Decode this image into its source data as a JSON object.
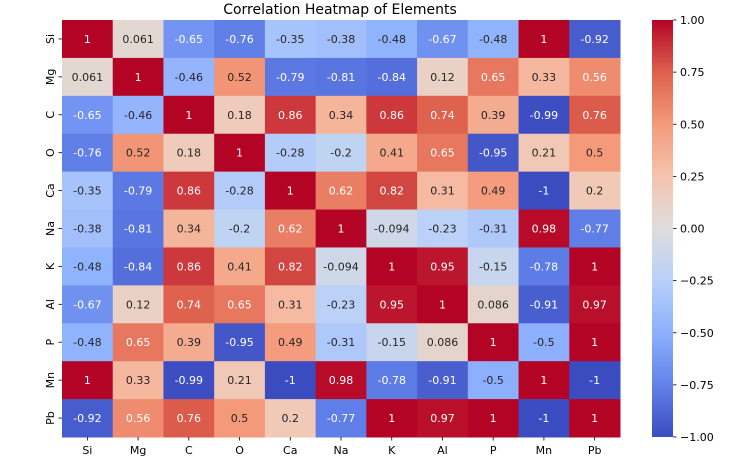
{
  "chart_data": {
    "type": "heatmap",
    "title": "Correlation Heatmap of Elements",
    "xlabel": "",
    "ylabel": "",
    "row_labels": [
      "Si",
      "Mg",
      "C",
      "O",
      "Ca",
      "Na",
      "K",
      "Al",
      "P",
      "Mn",
      "Pb"
    ],
    "col_labels": [
      "Si",
      "Mg",
      "C",
      "O",
      "Ca",
      "Na",
      "K",
      "Al",
      "P",
      "Mn",
      "Pb"
    ],
    "values": [
      [
        1,
        0.061,
        -0.65,
        -0.76,
        -0.35,
        -0.38,
        -0.48,
        -0.67,
        -0.48,
        1,
        -0.92
      ],
      [
        0.061,
        1,
        -0.46,
        0.52,
        -0.79,
        -0.81,
        -0.84,
        0.12,
        0.65,
        0.33,
        0.56
      ],
      [
        -0.65,
        -0.46,
        1,
        0.18,
        0.86,
        0.34,
        0.86,
        0.74,
        0.39,
        -0.99,
        0.76
      ],
      [
        -0.76,
        0.52,
        0.18,
        1,
        -0.28,
        -0.2,
        0.41,
        0.65,
        -0.95,
        0.21,
        0.5
      ],
      [
        -0.35,
        -0.79,
        0.86,
        -0.28,
        1,
        0.62,
        0.82,
        0.31,
        0.49,
        -1,
        0.2
      ],
      [
        -0.38,
        -0.81,
        0.34,
        -0.2,
        0.62,
        1,
        -0.094,
        -0.23,
        -0.31,
        0.98,
        -0.77
      ],
      [
        -0.48,
        -0.84,
        0.86,
        0.41,
        0.82,
        -0.094,
        1,
        0.95,
        -0.15,
        -0.78,
        1
      ],
      [
        -0.67,
        0.12,
        0.74,
        0.65,
        0.31,
        -0.23,
        0.95,
        1,
        0.086,
        -0.91,
        0.97
      ],
      [
        -0.48,
        0.65,
        0.39,
        -0.95,
        0.49,
        -0.31,
        -0.15,
        0.086,
        1,
        -0.5,
        1
      ],
      [
        1,
        0.33,
        -0.99,
        0.21,
        -1,
        0.98,
        -0.78,
        -0.91,
        -0.5,
        1,
        -1
      ],
      [
        -0.92,
        0.56,
        0.76,
        0.5,
        0.2,
        -0.77,
        1,
        0.97,
        1,
        -1,
        1
      ]
    ],
    "labels": [
      [
        "1",
        "0.061",
        "-0.65",
        "-0.76",
        "-0.35",
        "-0.38",
        "-0.48",
        "-0.67",
        "-0.48",
        "1",
        "-0.92"
      ],
      [
        "0.061",
        "1",
        "-0.46",
        "0.52",
        "-0.79",
        "-0.81",
        "-0.84",
        "0.12",
        "0.65",
        "0.33",
        "0.56"
      ],
      [
        "-0.65",
        "-0.46",
        "1",
        "0.18",
        "0.86",
        "0.34",
        "0.86",
        "0.74",
        "0.39",
        "-0.99",
        "0.76"
      ],
      [
        "-0.76",
        "0.52",
        "0.18",
        "1",
        "-0.28",
        "-0.2",
        "0.41",
        "0.65",
        "-0.95",
        "0.21",
        "0.5"
      ],
      [
        "-0.35",
        "-0.79",
        "0.86",
        "-0.28",
        "1",
        "0.62",
        "0.82",
        "0.31",
        "0.49",
        "-1",
        "0.2"
      ],
      [
        "-0.38",
        "-0.81",
        "0.34",
        "-0.2",
        "0.62",
        "1",
        "-0.094",
        "-0.23",
        "-0.31",
        "0.98",
        "-0.77"
      ],
      [
        "-0.48",
        "-0.84",
        "0.86",
        "0.41",
        "0.82",
        "-0.094",
        "1",
        "0.95",
        "-0.15",
        "-0.78",
        "1"
      ],
      [
        "-0.67",
        "0.12",
        "0.74",
        "0.65",
        "0.31",
        "-0.23",
        "0.95",
        "1",
        "0.086",
        "-0.91",
        "0.97"
      ],
      [
        "-0.48",
        "0.65",
        "0.39",
        "-0.95",
        "0.49",
        "-0.31",
        "-0.15",
        "0.086",
        "1",
        "-0.5",
        "1"
      ],
      [
        "1",
        "0.33",
        "-0.99",
        "0.21",
        "-1",
        "0.98",
        "-0.78",
        "-0.91",
        "-0.5",
        "1",
        "-1"
      ],
      [
        "-0.92",
        "0.56",
        "0.76",
        "0.5",
        "0.2",
        "-0.77",
        "1",
        "0.97",
        "1",
        "-1",
        "1"
      ]
    ],
    "vmin": -1.0,
    "vmax": 1.0,
    "colormap": "coolwarm",
    "colorbar_ticks": [
      1.0,
      0.75,
      0.5,
      0.25,
      0.0,
      -0.25,
      -0.5,
      -0.75,
      -1.0
    ],
    "colorbar_tick_labels": [
      "1.00",
      "0.75",
      "0.50",
      "0.25",
      "0.00",
      "−0.25",
      "−0.50",
      "−0.75",
      "−1.00"
    ],
    "colors": {
      "low": "#3b4cc0",
      "mid": "#dddddd",
      "high": "#b40426",
      "text_dark": "#262626",
      "text_light": "#ffffff"
    }
  }
}
